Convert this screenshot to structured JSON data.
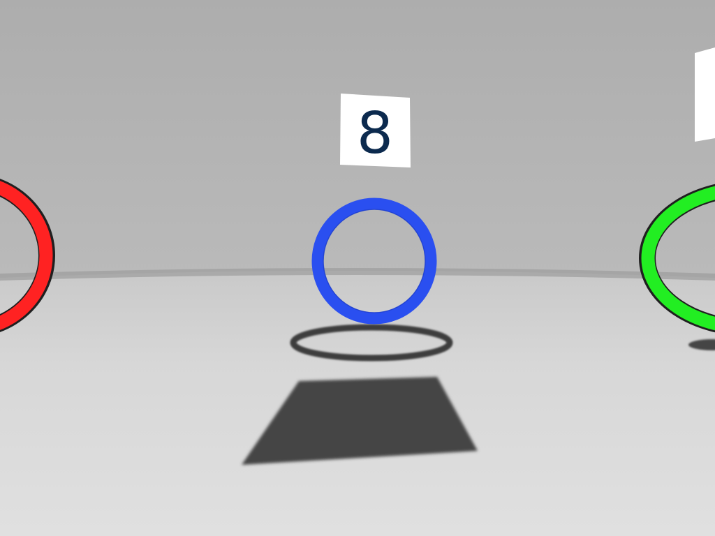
{
  "scene": {
    "name": "ring-scene",
    "center_sign": {
      "number": "8",
      "text_color": "#0c2a4e",
      "panel_color": "#ffffff"
    },
    "right_sign": {
      "number": "",
      "panel_color": "#ffffff"
    },
    "rings": {
      "left": {
        "color": "red",
        "hex": "#ff2222"
      },
      "center": {
        "color": "blue",
        "hex": "#2a4ff0"
      },
      "right": {
        "color": "green",
        "hex": "#22ee22"
      }
    },
    "colors": {
      "wall": "#b2b2b2",
      "floor": "#dadada",
      "shadow": "#454545"
    }
  }
}
